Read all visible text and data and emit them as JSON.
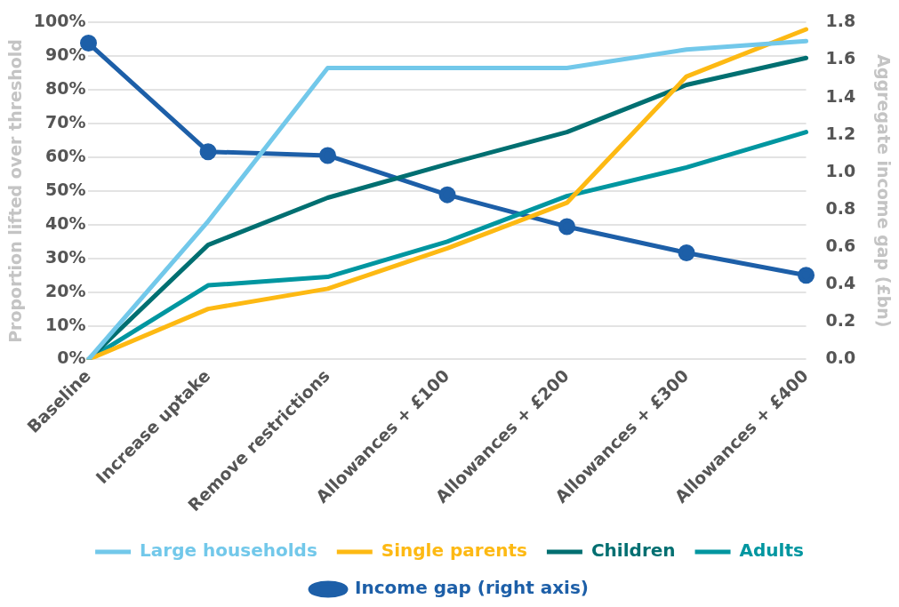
{
  "chart_data": {
    "type": "line",
    "categories": [
      "Baseline",
      "Increase uptake",
      "Remove restrictions",
      "Allowances + £100",
      "Allowances + £200",
      "Allowances + £300",
      "Allowances + £400"
    ],
    "series": [
      {
        "name": "Large households",
        "color": "#72c8ea",
        "values": [
          0,
          41,
          86.5,
          86.5,
          86.5,
          92,
          94.5
        ]
      },
      {
        "name": "Single parents",
        "color": "#fdb913",
        "values": [
          0,
          15,
          21,
          33,
          46.5,
          84,
          98
        ]
      },
      {
        "name": "Children",
        "color": "#006f71",
        "values": [
          0,
          34,
          48,
          58,
          67.5,
          81.5,
          89.5
        ]
      },
      {
        "name": "Adults",
        "color": "#0096a0",
        "values": [
          0,
          22,
          24.5,
          35,
          48.5,
          57,
          67.5
        ]
      },
      {
        "name": "Income gap (right axis)",
        "color": "#1d5fa8",
        "axis": "y2",
        "marker": "circle",
        "values": [
          1.69,
          1.11,
          1.09,
          0.88,
          0.71,
          0.57,
          0.45
        ]
      }
    ],
    "ylabel": "Proportion lifted over threshold",
    "y2label": "Aggregate income gap (£bn)",
    "ylim": [
      0,
      100
    ],
    "yticks": [
      {
        "value": 0,
        "label": "0%"
      },
      {
        "value": 10,
        "label": "10%"
      },
      {
        "value": 20,
        "label": "20%"
      },
      {
        "value": 30,
        "label": "30%"
      },
      {
        "value": 40,
        "label": "40%"
      },
      {
        "value": 50,
        "label": "50%"
      },
      {
        "value": 60,
        "label": "60%"
      },
      {
        "value": 70,
        "label": "70%"
      },
      {
        "value": 80,
        "label": "80%"
      },
      {
        "value": 90,
        "label": "90%"
      },
      {
        "value": 100,
        "label": "100%"
      }
    ],
    "y2lim": [
      0,
      1.8
    ],
    "y2ticks": [
      {
        "value": 0,
        "label": "0.0"
      },
      {
        "value": 0.2,
        "label": "0.2"
      },
      {
        "value": 0.4,
        "label": "0.4"
      },
      {
        "value": 0.6,
        "label": "0.6"
      },
      {
        "value": 0.8,
        "label": "0.8"
      },
      {
        "value": 1,
        "label": "1.0"
      },
      {
        "value": 1.2,
        "label": "1.2"
      },
      {
        "value": 1.4,
        "label": "1.4"
      },
      {
        "value": 1.6,
        "label": "1.6"
      },
      {
        "value": 1.8,
        "label": "1.8"
      }
    ],
    "grid": "y",
    "legend": "bottom",
    "line_style": "solid"
  }
}
